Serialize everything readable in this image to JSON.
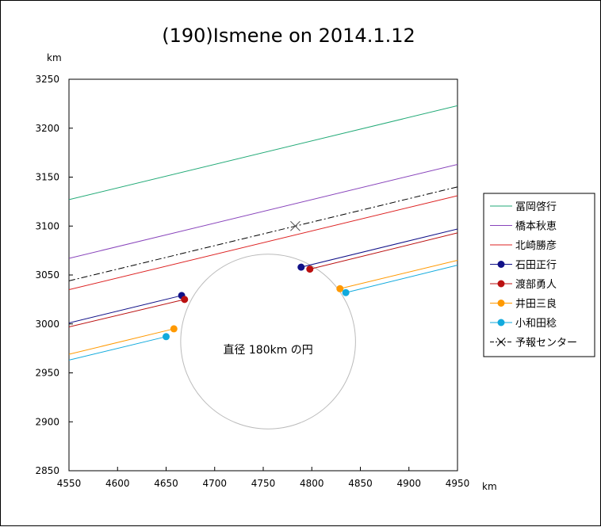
{
  "chart_data": {
    "type": "line",
    "title": "(190)Ismene on 2014.1.12",
    "x_unit": "km",
    "y_unit": "km",
    "xlim": [
      4550,
      4950
    ],
    "ylim": [
      2850,
      3250
    ],
    "x_ticks": [
      4550,
      4600,
      4650,
      4700,
      4750,
      4800,
      4850,
      4900,
      4950
    ],
    "y_ticks": [
      2850,
      2900,
      2950,
      3000,
      3050,
      3100,
      3150,
      3200,
      3250
    ],
    "grid": false,
    "legend_position": "right",
    "series": [
      {
        "name": "冨岡啓行",
        "color": "#22aa77",
        "style": "solid",
        "marker": false,
        "segments": [
          [
            [
              4550,
              3127
            ],
            [
              4950,
              3223
            ]
          ]
        ]
      },
      {
        "name": "橋本秋恵",
        "color": "#8844bb",
        "style": "solid",
        "marker": false,
        "segments": [
          [
            [
              4550,
              3067
            ],
            [
              4950,
              3163
            ]
          ]
        ]
      },
      {
        "name": "北崎勝彦",
        "color": "#dd2222",
        "style": "solid",
        "marker": false,
        "segments": [
          [
            [
              4550,
              3035
            ],
            [
              4950,
              3131
            ]
          ]
        ]
      },
      {
        "name": "石田正行",
        "color": "#111188",
        "style": "solid",
        "marker": true,
        "segments": [
          [
            [
              4550,
              3001
            ],
            [
              4666,
              3029
            ]
          ],
          [
            [
              4789,
              3058
            ],
            [
              4950,
              3097
            ]
          ]
        ]
      },
      {
        "name": "渡部勇人",
        "color": "#bb1111",
        "style": "solid",
        "marker": true,
        "segments": [
          [
            [
              4550,
              2997
            ],
            [
              4669,
              3025
            ]
          ],
          [
            [
              4798,
              3056
            ],
            [
              4950,
              3093
            ]
          ]
        ]
      },
      {
        "name": "井田三良",
        "color": "#ff9900",
        "style": "solid",
        "marker": true,
        "segments": [
          [
            [
              4550,
              2969
            ],
            [
              4658,
              2995
            ]
          ],
          [
            [
              4829,
              3036
            ],
            [
              4950,
              3065
            ]
          ]
        ]
      },
      {
        "name": "小和田稔",
        "color": "#11aadd",
        "style": "solid",
        "marker": true,
        "segments": [
          [
            [
              4550,
              2963
            ],
            [
              4650,
              2987
            ]
          ],
          [
            [
              4835,
              3032
            ],
            [
              4950,
              3060
            ]
          ]
        ]
      },
      {
        "name": "予報センター",
        "color": "#000000",
        "style": "dashdot",
        "marker": "x",
        "segments": [
          [
            [
              4550,
              3044
            ],
            [
              4950,
              3140
            ]
          ]
        ],
        "marker_point": [
          4783,
          3100
        ]
      }
    ],
    "circle": {
      "center": [
        4755,
        2982
      ],
      "diameter": 180,
      "color": "#bbbbbb"
    },
    "annotation": {
      "text": "直径 180km の円",
      "at": [
        4755,
        2970
      ]
    }
  }
}
